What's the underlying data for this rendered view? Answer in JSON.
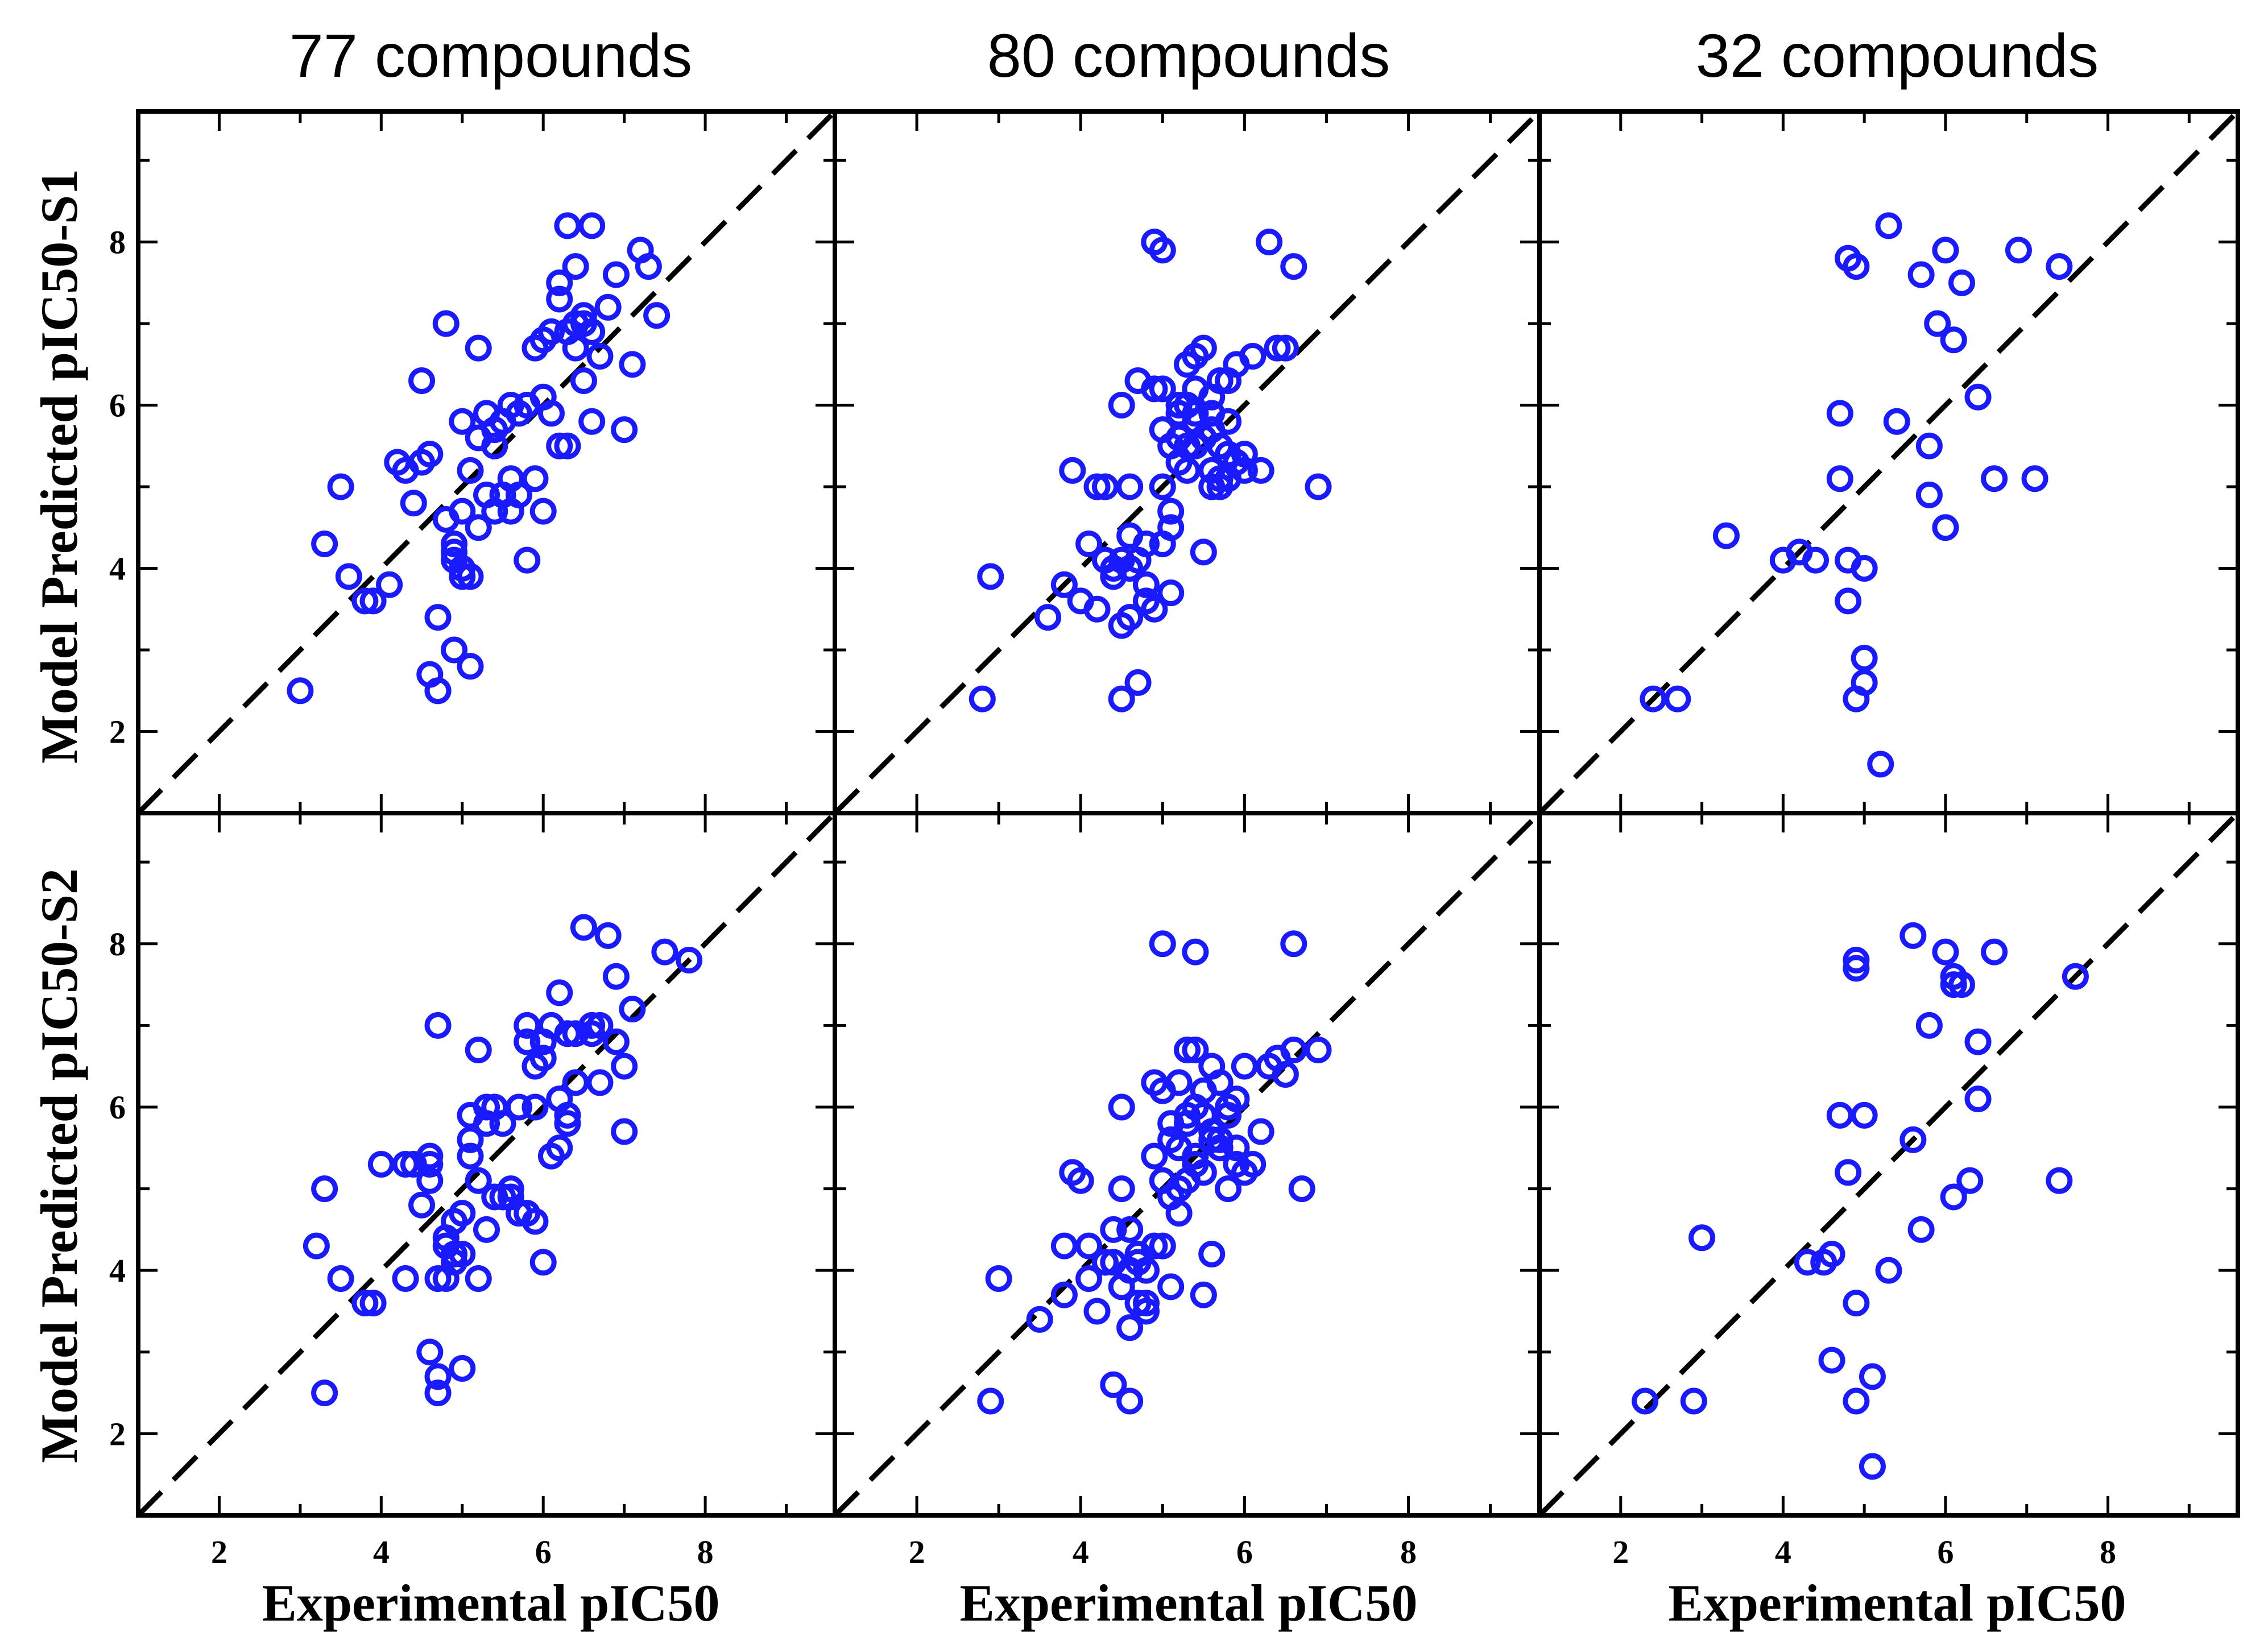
{
  "colors": {
    "marker": "#1a1aff",
    "diagonal": "#000000",
    "axes": "#000000"
  },
  "chart_data": {
    "type": "scatter",
    "layout": "2x3 grid",
    "xlabel": "Experimental pIC50",
    "ylabels": [
      "Model Predicted pIC50-S1",
      "Model Predicted pIC50-S2"
    ],
    "column_titles": [
      "77 compounds",
      "80 compounds",
      "32 compounds"
    ],
    "xlim": [
      1,
      9.6
    ],
    "ylim": [
      1,
      9.6
    ],
    "xticks": [
      2,
      4,
      6,
      8
    ],
    "yticks": [
      2,
      4,
      6,
      8
    ],
    "reference_line": "y = x (dashed)",
    "panels": [
      {
        "row": 0,
        "col": 0,
        "series": "S1, 77 compounds",
        "x": [
          3.0,
          3.3,
          3.5,
          3.6,
          3.8,
          3.9,
          4.1,
          4.2,
          4.3,
          4.4,
          4.5,
          4.5,
          4.6,
          4.6,
          4.7,
          4.8,
          4.8,
          4.9,
          4.9,
          5.0,
          5.0,
          5.0,
          5.1,
          5.1,
          5.2,
          5.2,
          5.2,
          5.3,
          5.3,
          5.4,
          5.4,
          5.5,
          5.5,
          5.6,
          5.6,
          5.7,
          5.7,
          5.8,
          5.8,
          5.9,
          5.9,
          6.0,
          6.0,
          6.0,
          6.1,
          6.1,
          6.2,
          6.2,
          6.3,
          6.3,
          6.3,
          6.4,
          6.4,
          6.5,
          6.5,
          6.6,
          6.6,
          6.7,
          6.8,
          6.9,
          7.0,
          7.1,
          7.2,
          7.3,
          7.4,
          4.7,
          4.7,
          4.9,
          5.1,
          5.0,
          5.6,
          6.5,
          6.6,
          6.4,
          6.2,
          5.4,
          4.9
        ],
        "y": [
          2.5,
          4.3,
          5.0,
          3.9,
          3.6,
          3.6,
          3.8,
          5.3,
          5.2,
          4.8,
          6.3,
          5.3,
          5.4,
          2.7,
          2.5,
          7.0,
          4.6,
          3.0,
          4.3,
          4.0,
          5.8,
          4.7,
          5.2,
          3.9,
          5.6,
          6.7,
          4.5,
          5.9,
          4.9,
          4.7,
          5.7,
          4.9,
          5.8,
          6.0,
          4.7,
          4.9,
          5.9,
          4.1,
          6.0,
          6.7,
          5.1,
          6.1,
          6.8,
          4.7,
          6.9,
          5.9,
          5.5,
          7.3,
          5.5,
          6.9,
          8.2,
          7.7,
          6.7,
          6.3,
          7.1,
          5.8,
          6.9,
          6.6,
          7.2,
          7.6,
          5.7,
          6.5,
          7.9,
          7.7,
          7.1,
          2.5,
          3.4,
          4.1,
          2.8,
          3.9,
          5.1,
          7.0,
          8.2,
          7.0,
          7.5,
          5.5,
          4.2
        ]
      },
      {
        "row": 0,
        "col": 1,
        "series": "S1, 80 compounds",
        "x": [
          2.8,
          2.9,
          3.6,
          3.8,
          3.9,
          4.0,
          4.1,
          4.2,
          4.3,
          4.3,
          4.4,
          4.5,
          4.5,
          4.6,
          4.6,
          4.7,
          4.7,
          4.8,
          4.8,
          4.9,
          4.9,
          5.0,
          5.0,
          5.0,
          5.1,
          5.1,
          5.1,
          5.2,
          5.2,
          5.2,
          5.3,
          5.3,
          5.3,
          5.4,
          5.4,
          5.4,
          5.5,
          5.5,
          5.5,
          5.6,
          5.6,
          5.6,
          5.7,
          5.7,
          5.7,
          5.8,
          5.8,
          5.8,
          5.9,
          5.9,
          6.0,
          6.0,
          6.1,
          6.2,
          6.3,
          6.4,
          6.5,
          6.6,
          6.9,
          4.9,
          5.0,
          4.5,
          4.6,
          4.7,
          4.8,
          5.0,
          5.2,
          5.3,
          5.4,
          5.5,
          5.6,
          5.7,
          5.8,
          5.4,
          5.6,
          5.1,
          4.4,
          4.6,
          4.5,
          4.2
        ],
        "y": [
          2.4,
          3.9,
          3.4,
          3.8,
          5.2,
          3.6,
          4.3,
          3.5,
          5.0,
          4.1,
          4.0,
          3.3,
          2.4,
          4.4,
          4.0,
          2.6,
          6.3,
          3.8,
          4.3,
          3.5,
          6.2,
          5.0,
          4.3,
          5.7,
          5.5,
          3.7,
          4.7,
          5.6,
          5.3,
          6.0,
          6.0,
          5.2,
          6.5,
          6.6,
          5.5,
          5.8,
          5.6,
          6.7,
          4.2,
          5.2,
          5.9,
          6.1,
          5.5,
          6.3,
          5.0,
          5.1,
          5.8,
          6.3,
          5.3,
          6.5,
          5.2,
          5.4,
          6.6,
          5.2,
          8.0,
          6.7,
          6.7,
          7.7,
          5.0,
          8.0,
          7.9,
          6.0,
          3.4,
          4.1,
          3.6,
          6.2,
          5.9,
          5.5,
          6.2,
          5.6,
          5.0,
          5.1,
          5.4,
          5.9,
          5.7,
          4.5,
          3.9,
          5.0,
          4.1,
          5.0
        ]
      },
      {
        "row": 0,
        "col": 2,
        "series": "S1, 32 compounds",
        "x": [
          2.4,
          2.7,
          3.3,
          4.0,
          4.2,
          4.4,
          4.7,
          4.7,
          4.8,
          4.8,
          4.8,
          4.9,
          4.9,
          5.0,
          5.0,
          5.0,
          5.2,
          5.3,
          5.4,
          5.7,
          5.8,
          5.8,
          5.9,
          6.0,
          6.0,
          6.1,
          6.2,
          6.4,
          6.6,
          6.9,
          7.1,
          7.4
        ],
        "y": [
          2.4,
          2.4,
          4.4,
          4.1,
          4.2,
          4.1,
          5.9,
          5.1,
          7.8,
          4.1,
          3.6,
          7.7,
          2.4,
          2.6,
          2.9,
          4.0,
          1.6,
          8.2,
          5.8,
          7.6,
          5.5,
          4.9,
          7.0,
          7.9,
          4.5,
          6.8,
          7.5,
          6.1,
          5.1,
          7.9,
          5.1,
          7.7
        ]
      },
      {
        "row": 1,
        "col": 0,
        "series": "S2, 77 compounds",
        "x": [
          3.2,
          3.3,
          3.3,
          3.5,
          3.8,
          3.9,
          4.0,
          4.3,
          4.4,
          4.5,
          4.6,
          4.6,
          4.7,
          4.7,
          4.7,
          4.8,
          4.8,
          4.9,
          4.9,
          5.0,
          5.0,
          5.1,
          5.1,
          5.2,
          5.2,
          5.3,
          5.3,
          5.4,
          5.4,
          5.5,
          5.6,
          5.6,
          5.7,
          5.7,
          5.8,
          5.8,
          5.9,
          5.9,
          6.0,
          6.0,
          6.1,
          6.1,
          6.2,
          6.2,
          6.3,
          6.3,
          6.4,
          6.4,
          6.5,
          6.6,
          6.7,
          6.8,
          6.9,
          7.0,
          7.1,
          7.5,
          7.8,
          4.6,
          4.7,
          4.8,
          5.0,
          5.2,
          5.5,
          6.0,
          6.3,
          6.7,
          6.9,
          7.0,
          5.9,
          5.3,
          5.1,
          4.9,
          4.6,
          4.3,
          6.2,
          5.8,
          6.6
        ],
        "y": [
          4.3,
          5.0,
          2.5,
          3.9,
          3.6,
          3.6,
          5.3,
          3.9,
          5.3,
          4.8,
          5.4,
          3.0,
          2.7,
          2.5,
          7.0,
          4.3,
          3.9,
          4.1,
          4.6,
          4.7,
          2.8,
          5.6,
          5.9,
          3.9,
          6.7,
          5.8,
          4.5,
          4.9,
          6.0,
          4.9,
          5.0,
          4.9,
          4.7,
          6.0,
          7.0,
          4.7,
          6.5,
          6.0,
          4.1,
          6.6,
          7.0,
          5.4,
          5.5,
          7.4,
          5.8,
          6.9,
          6.3,
          6.9,
          8.2,
          6.9,
          7.0,
          8.1,
          6.8,
          6.5,
          7.2,
          7.9,
          7.8,
          5.3,
          3.9,
          4.4,
          4.2,
          5.1,
          5.8,
          6.8,
          5.9,
          6.3,
          7.6,
          5.7,
          4.6,
          6.0,
          5.4,
          4.2,
          5.1,
          5.3,
          6.1,
          6.8,
          7.0
        ]
      },
      {
        "row": 1,
        "col": 1,
        "series": "S2, 80 compounds",
        "x": [
          2.9,
          3.0,
          3.5,
          3.8,
          3.9,
          4.0,
          4.1,
          4.2,
          4.3,
          4.4,
          4.4,
          4.5,
          4.5,
          4.6,
          4.6,
          4.7,
          4.7,
          4.8,
          4.8,
          4.9,
          4.9,
          5.0,
          5.0,
          5.0,
          5.1,
          5.1,
          5.1,
          5.2,
          5.2,
          5.2,
          5.3,
          5.3,
          5.3,
          5.4,
          5.4,
          5.4,
          5.5,
          5.5,
          5.5,
          5.6,
          5.6,
          5.6,
          5.7,
          5.7,
          5.8,
          5.8,
          5.9,
          5.9,
          6.0,
          6.0,
          6.1,
          6.2,
          6.3,
          6.4,
          6.5,
          6.6,
          6.7,
          6.9,
          5.0,
          5.4,
          6.6,
          4.5,
          4.6,
          4.7,
          4.8,
          4.9,
          5.1,
          5.2,
          5.3,
          5.4,
          5.5,
          5.6,
          5.7,
          5.8,
          5.9,
          4.3,
          4.1,
          3.8,
          4.6,
          4.4
        ],
        "y": [
          2.4,
          3.9,
          3.4,
          3.7,
          5.2,
          5.1,
          4.3,
          3.5,
          4.1,
          2.6,
          4.5,
          5.0,
          3.8,
          2.4,
          4.0,
          4.2,
          3.6,
          4.0,
          3.5,
          6.3,
          5.4,
          4.3,
          5.1,
          6.2,
          4.9,
          5.8,
          3.8,
          4.7,
          6.3,
          5.5,
          6.7,
          5.1,
          5.9,
          6.7,
          5.3,
          6.0,
          5.2,
          3.7,
          6.2,
          4.2,
          5.6,
          6.5,
          5.5,
          6.3,
          5.0,
          5.9,
          5.3,
          6.1,
          5.2,
          6.5,
          5.3,
          5.7,
          6.5,
          6.6,
          6.4,
          6.7,
          5.0,
          6.7,
          8.0,
          7.9,
          8.0,
          6.0,
          3.3,
          4.1,
          3.6,
          4.3,
          5.6,
          5.0,
          5.8,
          5.4,
          5.9,
          5.7,
          5.6,
          6.0,
          5.5,
          4.1,
          3.9,
          4.3,
          4.5,
          4.1
        ]
      },
      {
        "row": 1,
        "col": 2,
        "series": "S2, 32 compounds",
        "x": [
          2.3,
          2.9,
          3.0,
          4.3,
          4.5,
          4.6,
          4.6,
          4.7,
          4.8,
          4.9,
          4.9,
          4.9,
          4.9,
          5.0,
          5.1,
          5.1,
          5.3,
          5.6,
          5.6,
          5.7,
          5.8,
          6.0,
          6.1,
          6.1,
          6.1,
          6.2,
          6.3,
          6.4,
          6.4,
          6.6,
          7.4,
          7.6
        ],
        "y": [
          2.4,
          2.4,
          4.4,
          4.1,
          4.1,
          4.2,
          2.9,
          5.9,
          5.2,
          7.8,
          7.7,
          2.4,
          3.6,
          5.9,
          2.7,
          1.6,
          4.0,
          8.1,
          5.6,
          4.5,
          7.0,
          7.9,
          7.6,
          7.5,
          4.9,
          7.5,
          5.1,
          6.8,
          6.1,
          7.9,
          5.1,
          7.6
        ]
      }
    ]
  }
}
